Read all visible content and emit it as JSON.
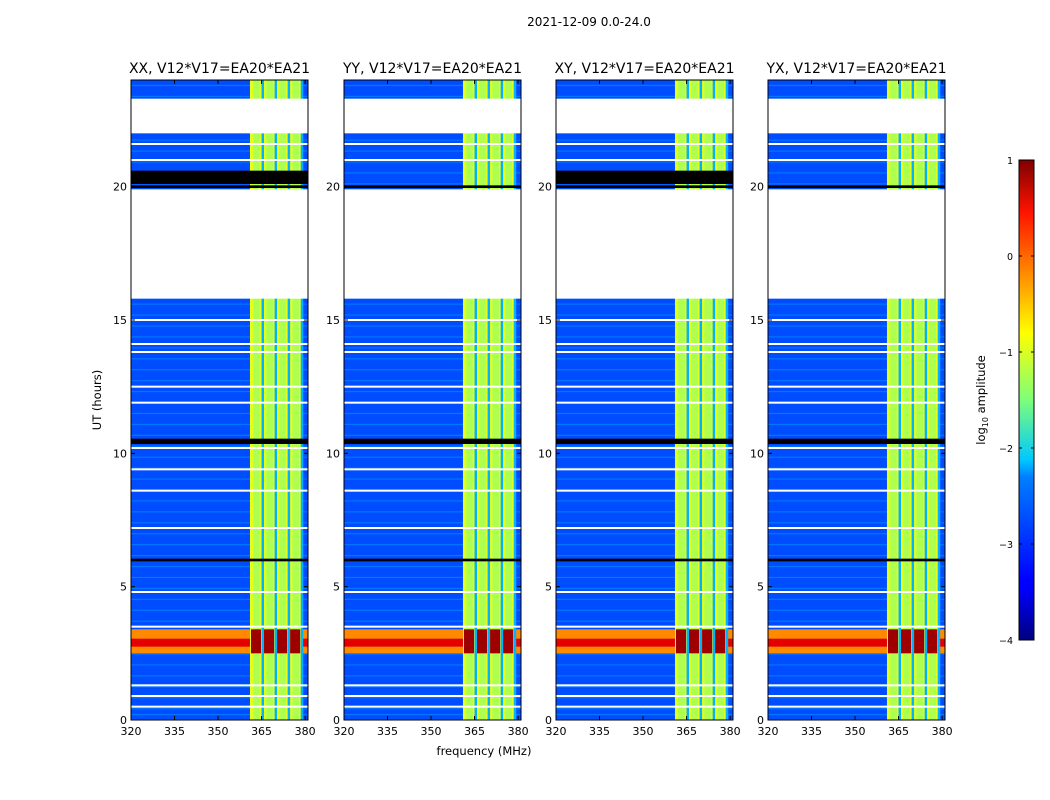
{
  "chart_data": {
    "type": "heatmap",
    "suptitle": "2021-12-09 0.0-24.0",
    "xlabel": "frequency (MHz)",
    "ylabel": "UT (hours)",
    "xlim": [
      320,
      381
    ],
    "ylim": [
      0,
      24
    ],
    "x_ticks": [
      320,
      335,
      350,
      365,
      380
    ],
    "y_ticks": [
      0,
      5,
      10,
      15,
      20
    ],
    "panels": [
      {
        "name": "xx",
        "title": "XX, V12*V17=EA20*EA21"
      },
      {
        "name": "yy",
        "title": "YY, V12*V17=EA20*EA21"
      },
      {
        "name": "xy",
        "title": "XY, V12*V17=EA20*EA21"
      },
      {
        "name": "yx",
        "title": "YX, V12*V17=EA20*EA21"
      }
    ],
    "colorbar": {
      "label": "log10 amplitude",
      "range": [
        -4,
        1
      ],
      "ticks": [
        1,
        0,
        -1,
        -2,
        -3,
        -4
      ],
      "tick_labels": [
        "1",
        "0",
        "−1",
        "−2",
        "−3",
        "−4"
      ]
    },
    "features": {
      "background_log_amplitude": -3,
      "signal_band_mhz": [
        361,
        379
      ],
      "signal_log_amplitude": -1,
      "strong_event_ut_hours": [
        2.5,
        3.4
      ],
      "strong_event_log_amplitude": 0.5,
      "data_gap_ut_hours": [
        [
          15.8,
          19.9
        ],
        [
          22.0,
          23.3
        ]
      ]
    }
  }
}
